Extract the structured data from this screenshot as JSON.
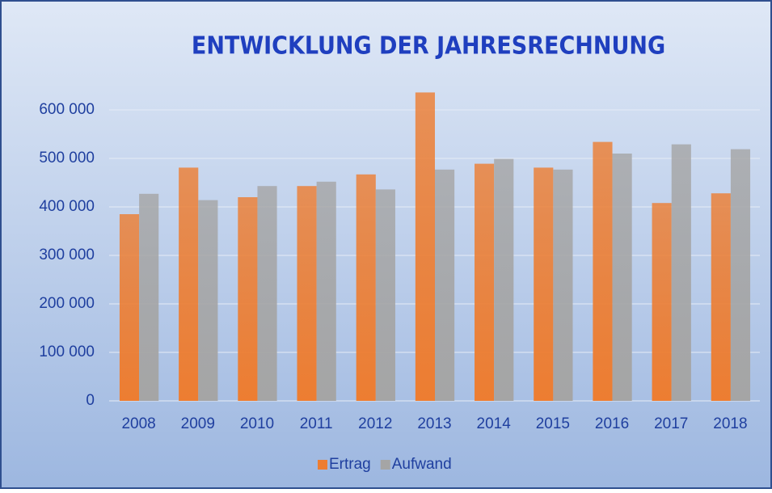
{
  "chart_data": {
    "type": "bar",
    "title": "ENTWICKLUNG DER JAHRESRECHNUNG",
    "categories": [
      "2008",
      "2009",
      "2010",
      "2011",
      "2012",
      "2013",
      "2014",
      "2015",
      "2016",
      "2017",
      "2018"
    ],
    "series": [
      {
        "name": "Ertrag",
        "color": "#ed7d31",
        "values": [
          385000,
          481000,
          420000,
          443000,
          467000,
          636000,
          489000,
          481000,
          534000,
          408000,
          428000
        ]
      },
      {
        "name": "Aufwand",
        "color": "#a5a5a5",
        "values": [
          427000,
          414000,
          443000,
          452000,
          436000,
          477000,
          499000,
          477000,
          510000,
          529000,
          519000
        ]
      }
    ],
    "ylim": [
      0,
      650000
    ],
    "yticks": [
      0,
      {
        "value": 100000,
        "label": "100 000"
      },
      {
        "value": 200000,
        "label": "200 000"
      },
      {
        "value": 300000,
        "label": "300 000"
      },
      {
        "value": 400000,
        "label": "400 000"
      },
      {
        "value": 500000,
        "label": "500 000"
      },
      {
        "value": 600000,
        "label": "600 000"
      }
    ],
    "grid": true,
    "legend": "bottom"
  }
}
